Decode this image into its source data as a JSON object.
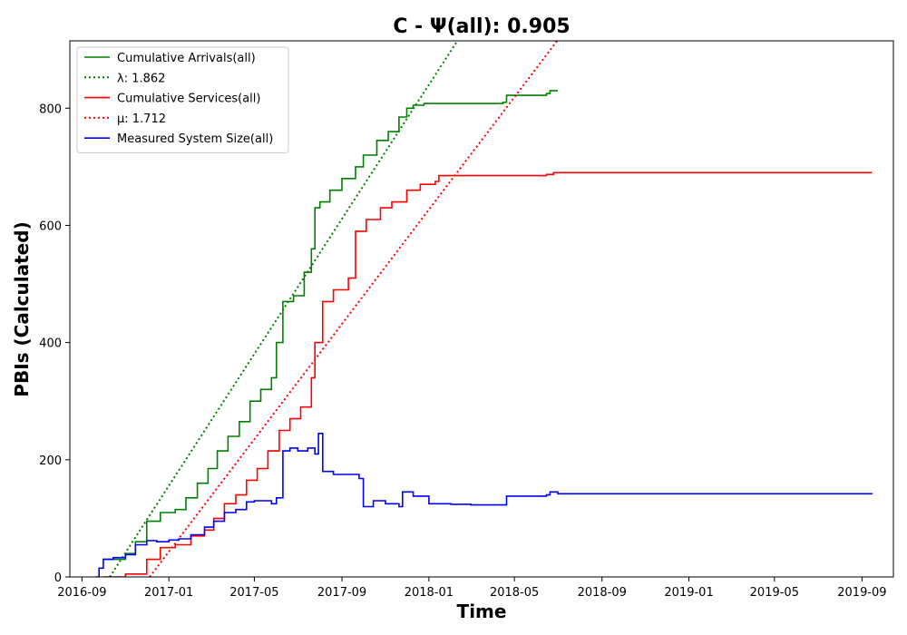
{
  "chart_data": {
    "type": "line",
    "title": "C -  Ψ(all): 0.905",
    "xlabel": "Time",
    "ylabel": "PBIs (Calculated)",
    "xlim": [
      "2016-08-15",
      "2019-10-15"
    ],
    "ylim": [
      0,
      915
    ],
    "x_ticks": [
      "2016-09",
      "2017-01",
      "2017-05",
      "2017-09",
      "2018-01",
      "2018-05",
      "2018-09",
      "2019-01",
      "2019-05",
      "2019-09"
    ],
    "y_ticks": [
      0,
      200,
      400,
      600,
      800
    ],
    "grid": false,
    "legend_position": "top-left",
    "series": [
      {
        "name": "Cumulative Arrivals(all)",
        "color": "#008000",
        "style": "solid",
        "x": [
          "2016-10-01",
          "2016-11-01",
          "2016-11-15",
          "2016-12-01",
          "2016-12-20",
          "2017-01-10",
          "2017-01-25",
          "2017-02-10",
          "2017-02-25",
          "2017-03-10",
          "2017-03-25",
          "2017-04-10",
          "2017-04-25",
          "2017-05-10",
          "2017-05-25",
          "2017-06-01",
          "2017-06-10",
          "2017-06-25",
          "2017-07-10",
          "2017-07-20",
          "2017-07-25",
          "2017-08-01",
          "2017-08-15",
          "2017-09-01",
          "2017-09-20",
          "2017-10-01",
          "2017-10-20",
          "2017-11-05",
          "2017-11-20",
          "2017-12-01",
          "2017-12-10",
          "2017-12-25",
          "2018-01-10",
          "2018-02-15",
          "2018-04-15",
          "2018-04-20",
          "2018-06-15",
          "2018-06-20",
          "2018-07-01"
        ],
        "y": [
          30,
          40,
          60,
          95,
          110,
          115,
          135,
          160,
          185,
          215,
          240,
          265,
          300,
          320,
          340,
          400,
          470,
          480,
          520,
          560,
          630,
          640,
          660,
          680,
          700,
          720,
          745,
          760,
          785,
          800,
          805,
          808,
          808,
          808,
          810,
          822,
          825,
          830,
          830
        ]
      },
      {
        "name": "λ: 1.862",
        "color": "#008000",
        "style": "dotted",
        "x": [
          "2016-10-10",
          "2018-02-10"
        ],
        "y": [
          0,
          915
        ]
      },
      {
        "name": "Cumulative Services(all)",
        "color": "#ff0000",
        "style": "solid",
        "x": [
          "2016-10-01",
          "2016-11-01",
          "2016-12-01",
          "2016-12-20",
          "2017-01-10",
          "2017-02-01",
          "2017-02-20",
          "2017-03-05",
          "2017-03-20",
          "2017-04-05",
          "2017-04-20",
          "2017-05-05",
          "2017-05-20",
          "2017-06-05",
          "2017-06-20",
          "2017-07-05",
          "2017-07-20",
          "2017-07-25",
          "2017-08-05",
          "2017-08-20",
          "2017-09-10",
          "2017-09-20",
          "2017-10-05",
          "2017-10-25",
          "2017-11-10",
          "2017-12-01",
          "2017-12-20",
          "2018-01-10",
          "2018-01-15",
          "2018-04-01",
          "2018-06-15",
          "2018-06-25",
          "2018-09-01",
          "2019-01-01",
          "2019-05-01",
          "2019-09-15"
        ],
        "y": [
          0,
          5,
          30,
          50,
          55,
          70,
          80,
          100,
          125,
          140,
          165,
          185,
          215,
          250,
          270,
          290,
          340,
          400,
          470,
          490,
          510,
          590,
          610,
          630,
          640,
          660,
          670,
          675,
          685,
          685,
          687,
          690,
          690,
          690,
          690,
          690
        ]
      },
      {
        "name": "μ: 1.712",
        "color": "#ff0000",
        "style": "dotted",
        "x": [
          "2016-12-05",
          "2018-06-30"
        ],
        "y": [
          0,
          915
        ]
      },
      {
        "name": "Measured System Size(all)",
        "color": "#0000ff",
        "style": "solid",
        "x": [
          "2016-09-20",
          "2016-09-25",
          "2016-10-01",
          "2016-10-15",
          "2016-11-01",
          "2016-11-15",
          "2016-12-01",
          "2016-12-15",
          "2017-01-01",
          "2017-01-15",
          "2017-02-01",
          "2017-02-20",
          "2017-03-05",
          "2017-03-20",
          "2017-04-05",
          "2017-04-20",
          "2017-05-01",
          "2017-05-15",
          "2017-05-25",
          "2017-06-01",
          "2017-06-10",
          "2017-06-20",
          "2017-07-01",
          "2017-07-15",
          "2017-07-25",
          "2017-07-30",
          "2017-08-05",
          "2017-08-20",
          "2017-09-10",
          "2017-09-25",
          "2017-10-01",
          "2017-10-15",
          "2017-11-01",
          "2017-11-20",
          "2017-11-25",
          "2017-12-10",
          "2018-01-01",
          "2018-02-01",
          "2018-03-01",
          "2018-04-15",
          "2018-04-20",
          "2018-06-15",
          "2018-06-20",
          "2018-07-01",
          "2019-01-01",
          "2019-09-15"
        ],
        "y": [
          0,
          15,
          30,
          33,
          38,
          55,
          62,
          60,
          63,
          65,
          72,
          85,
          95,
          110,
          115,
          128,
          130,
          130,
          125,
          135,
          215,
          220,
          215,
          220,
          210,
          245,
          180,
          175,
          175,
          168,
          120,
          130,
          125,
          120,
          145,
          138,
          125,
          124,
          123,
          123,
          138,
          140,
          145,
          142,
          142,
          141
        ]
      }
    ]
  }
}
